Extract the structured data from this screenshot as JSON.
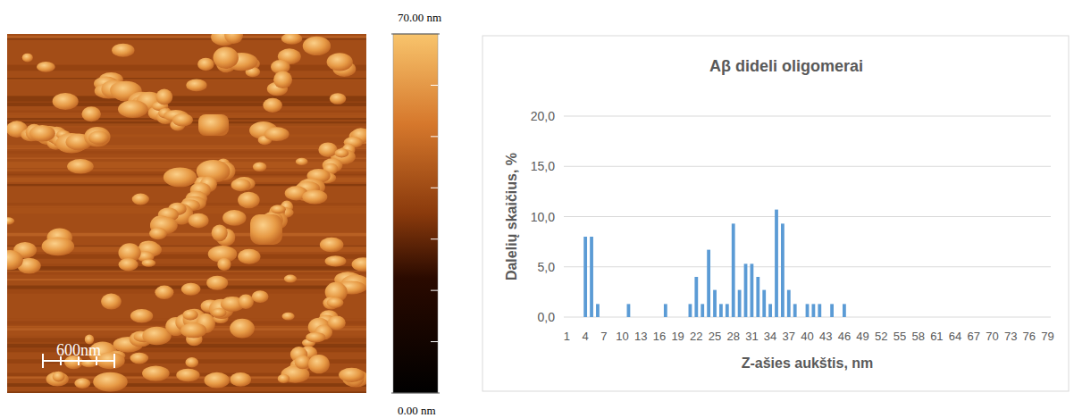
{
  "afm_image": {
    "scale_bar": "600nm",
    "colorbar": {
      "range": [
        0,
        70
      ],
      "ticks": [
        {
          "value": 0,
          "label": "0.00 nm"
        },
        {
          "value": 70,
          "label": "70.00 nm"
        }
      ],
      "minor_ticks": [
        10,
        20,
        30,
        40,
        50,
        60
      ]
    }
  },
  "chart_data": {
    "type": "bar",
    "title": "Aβ dideli oligomerai",
    "x_label": "Z-ašies aukštis, nm",
    "y_label": "Dalelių skaičius, %",
    "categories": [
      1,
      null,
      null,
      4,
      null,
      null,
      7,
      null,
      null,
      10,
      null,
      null,
      13,
      null,
      null,
      16,
      null,
      null,
      19,
      null,
      null,
      22,
      null,
      null,
      25,
      null,
      null,
      28,
      null,
      null,
      31,
      null,
      null,
      34,
      null,
      null,
      37,
      null,
      null,
      40,
      null,
      null,
      43,
      null,
      null,
      46,
      null,
      null,
      49,
      null,
      null,
      52,
      null,
      null,
      55,
      null,
      null,
      58,
      null,
      null,
      61,
      null,
      null,
      64,
      null,
      null,
      67,
      null,
      null,
      70,
      null,
      null,
      73,
      null,
      null,
      76,
      null,
      null,
      79
    ],
    "values": [
      0,
      0,
      0,
      8.0,
      8.0,
      1.3,
      0,
      0,
      0,
      0,
      1.3,
      0,
      0,
      0,
      0,
      0,
      1.3,
      0,
      0,
      0,
      1.3,
      4.0,
      1.3,
      6.7,
      2.7,
      1.3,
      1.3,
      9.3,
      2.7,
      5.3,
      5.3,
      4.0,
      2.7,
      1.3,
      10.7,
      9.3,
      2.7,
      1.3,
      0,
      1.3,
      1.3,
      1.3,
      0,
      1.3,
      0,
      1.3,
      0,
      0,
      0,
      0,
      0,
      0,
      0,
      0,
      0,
      0,
      0,
      0,
      0,
      0,
      0,
      0,
      0,
      0,
      0,
      0,
      0,
      0,
      0,
      0,
      0,
      0,
      0,
      0,
      0,
      0,
      0,
      0,
      0
    ],
    "color": "#5b9bd5",
    "ylim": [
      0,
      20
    ],
    "yticks": [
      {
        "value": 0,
        "label": "0,0"
      },
      {
        "value": 5,
        "label": "5,0"
      },
      {
        "value": 10,
        "label": "10,0"
      },
      {
        "value": 15,
        "label": "15,0"
      },
      {
        "value": 20,
        "label": "20,0"
      }
    ],
    "grid": true
  }
}
